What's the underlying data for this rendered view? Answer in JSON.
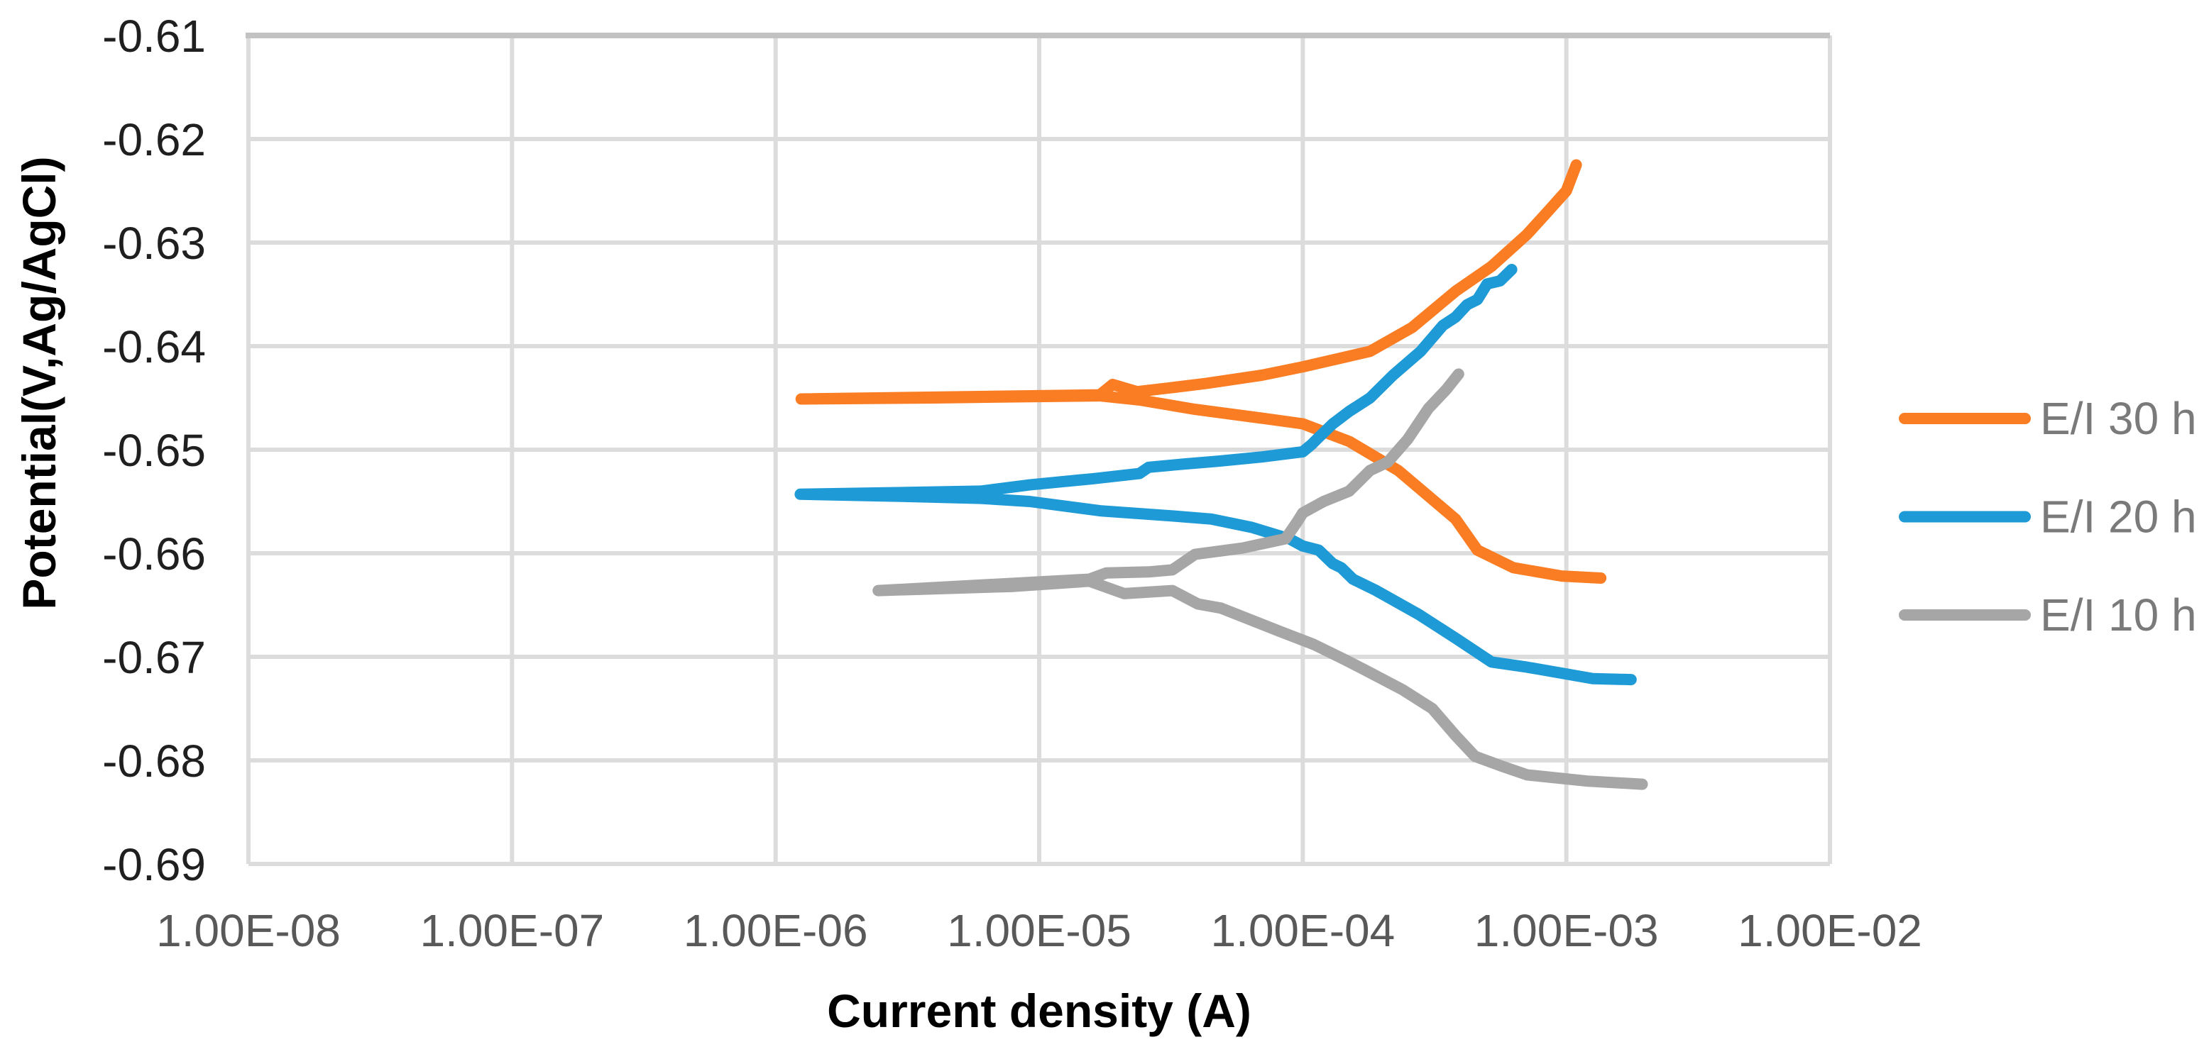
{
  "chart_data": {
    "type": "line",
    "title": "",
    "xlabel": "Current density (A)",
    "ylabel": "Potential(V,Ag/AgCl)",
    "x_scale": "log",
    "xlim": [
      1e-08,
      0.01
    ],
    "ylim": [
      -0.69,
      -0.61
    ],
    "grid": true,
    "legend_position": "right",
    "x_ticks": [
      "1.00E-08",
      "1.00E-07",
      "1.00E-06",
      "1.00E-05",
      "1.00E-04",
      "1.00E-03",
      "1.00E-02"
    ],
    "x_tick_values": [
      1e-08,
      1e-07,
      1e-06,
      1e-05,
      0.0001,
      0.001,
      0.01
    ],
    "y_ticks": [
      "-0.61",
      "-0.62",
      "-0.63",
      "-0.64",
      "-0.65",
      "-0.66",
      "-0.67",
      "-0.68",
      "-0.69"
    ],
    "y_tick_values": [
      -0.61,
      -0.62,
      -0.63,
      -0.64,
      -0.65,
      -0.66,
      -0.67,
      -0.68,
      -0.69
    ],
    "colors": {
      "gridline": "#DCDCDC",
      "plot_border_top": "#C2C2C2",
      "x_tick_text": "#595959",
      "y_tick_text": "#1f1f1f",
      "legend_text": "#7a7a7a",
      "background": "#FFFFFF"
    },
    "series": [
      {
        "name": "E/I 30 h",
        "color": "#FB7D23",
        "points": [
          [
            0.00135,
            -0.6624
          ],
          [
            0.00096,
            -0.6622
          ],
          [
            0.00063,
            -0.6614
          ],
          [
            0.00046,
            -0.6597
          ],
          [
            0.00038,
            -0.6567
          ],
          [
            0.00023,
            -0.652
          ],
          [
            0.00015,
            -0.6492
          ],
          [
            0.0001,
            -0.6475
          ],
          [
            7.2e-05,
            -0.647
          ],
          [
            3.9e-05,
            -0.6461
          ],
          [
            2.4e-05,
            -0.6452
          ],
          [
            1.7e-05,
            -0.6448
          ],
          [
            8e-06,
            -0.6449
          ],
          [
            4e-06,
            -0.645
          ],
          [
            1.25e-06,
            -0.6451
          ],
          [
            1.7e-05,
            -0.6447
          ],
          [
            1.9e-05,
            -0.6437
          ],
          [
            2.35e-05,
            -0.6444
          ],
          [
            3.2e-05,
            -0.644
          ],
          [
            4.3e-05,
            -0.6436
          ],
          [
            7e-05,
            -0.6428
          ],
          [
            0.0001,
            -0.642
          ],
          [
            0.00018,
            -0.6405
          ],
          [
            0.00026,
            -0.6382
          ],
          [
            0.00038,
            -0.6347
          ],
          [
            0.00052,
            -0.6323
          ],
          [
            0.00071,
            -0.6292
          ],
          [
            0.00085,
            -0.627
          ],
          [
            0.001,
            -0.625
          ],
          [
            0.00109,
            -0.6225
          ]
        ]
      },
      {
        "name": "E/I 20 h",
        "color": "#1E9AD6",
        "points": [
          [
            0.00176,
            -0.6722
          ],
          [
            0.00126,
            -0.6721
          ],
          [
            0.00071,
            -0.671
          ],
          [
            0.00052,
            -0.6705
          ],
          [
            0.00038,
            -0.6682
          ],
          [
            0.000275,
            -0.6659
          ],
          [
            0.00019,
            -0.6636
          ],
          [
            0.000155,
            -0.6625
          ],
          [
            0.00014,
            -0.6614
          ],
          [
            0.00013,
            -0.661
          ],
          [
            0.000115,
            -0.6597
          ],
          [
            0.0001,
            -0.6593
          ],
          [
            8.9e-05,
            -0.6586
          ],
          [
            7.2e-05,
            -0.6579
          ],
          [
            6.4e-05,
            -0.6575
          ],
          [
            4.5e-05,
            -0.6567
          ],
          [
            3.2e-05,
            -0.6564
          ],
          [
            1.7e-05,
            -0.6559
          ],
          [
            9.2e-06,
            -0.655
          ],
          [
            6e-06,
            -0.6547
          ],
          [
            3e-06,
            -0.6545
          ],
          [
            1.24e-06,
            -0.6543
          ],
          [
            6e-06,
            -0.654
          ],
          [
            9.2e-06,
            -0.6534
          ],
          [
            1.6e-05,
            -0.6528
          ],
          [
            2.4e-05,
            -0.6523
          ],
          [
            2.6e-05,
            -0.6517
          ],
          [
            3.5e-05,
            -0.6514
          ],
          [
            4.8e-05,
            -0.6511
          ],
          [
            7e-05,
            -0.6507
          ],
          [
            0.0001,
            -0.6502
          ],
          [
            0.000108,
            -0.6495
          ],
          [
            0.000115,
            -0.6488
          ],
          [
            0.00013,
            -0.6475
          ],
          [
            0.00015,
            -0.6463
          ],
          [
            0.00018,
            -0.645
          ],
          [
            0.00022,
            -0.6428
          ],
          [
            0.00028,
            -0.6405
          ],
          [
            0.00034,
            -0.638
          ],
          [
            0.00038,
            -0.6372
          ],
          [
            0.00042,
            -0.636
          ],
          [
            0.00046,
            -0.6355
          ],
          [
            0.0005,
            -0.634
          ],
          [
            0.00056,
            -0.6337
          ],
          [
            0.00062,
            -0.6326
          ]
        ]
      },
      {
        "name": "E/I 10 h",
        "color": "#A6A6A6",
        "points": [
          [
            0.00194,
            -0.6823
          ],
          [
            0.0012,
            -0.682
          ],
          [
            0.00071,
            -0.6814
          ],
          [
            0.00056,
            -0.6805
          ],
          [
            0.00045,
            -0.6796
          ],
          [
            0.00038,
            -0.6776
          ],
          [
            0.00031,
            -0.675
          ],
          [
            0.00024,
            -0.6732
          ],
          [
            0.00017,
            -0.6712
          ],
          [
            0.000145,
            -0.6703
          ],
          [
            0.00011,
            -0.6688
          ],
          [
            8.1e-05,
            -0.6675
          ],
          [
            4.9e-05,
            -0.6653
          ],
          [
            4e-05,
            -0.6649
          ],
          [
            3.2e-05,
            -0.6636
          ],
          [
            2.1e-05,
            -0.6639
          ],
          [
            1.55e-05,
            -0.6627
          ],
          [
            8e-06,
            -0.6632
          ],
          [
            2.45e-06,
            -0.6636
          ],
          [
            1.55e-05,
            -0.6625
          ],
          [
            1.8e-05,
            -0.6619
          ],
          [
            2.6e-05,
            -0.6618
          ],
          [
            3.2e-05,
            -0.6616
          ],
          [
            3.9e-05,
            -0.6601
          ],
          [
            5.9e-05,
            -0.6595
          ],
          [
            8.6e-05,
            -0.6586
          ],
          [
            9.5e-05,
            -0.657
          ],
          [
            0.0001,
            -0.6561
          ],
          [
            0.00012,
            -0.655
          ],
          [
            0.00015,
            -0.654
          ],
          [
            0.00018,
            -0.652
          ],
          [
            0.00021,
            -0.6512
          ],
          [
            0.00025,
            -0.649
          ],
          [
            0.0003,
            -0.646
          ],
          [
            0.00035,
            -0.6442
          ],
          [
            0.00039,
            -0.6427
          ]
        ]
      }
    ]
  }
}
